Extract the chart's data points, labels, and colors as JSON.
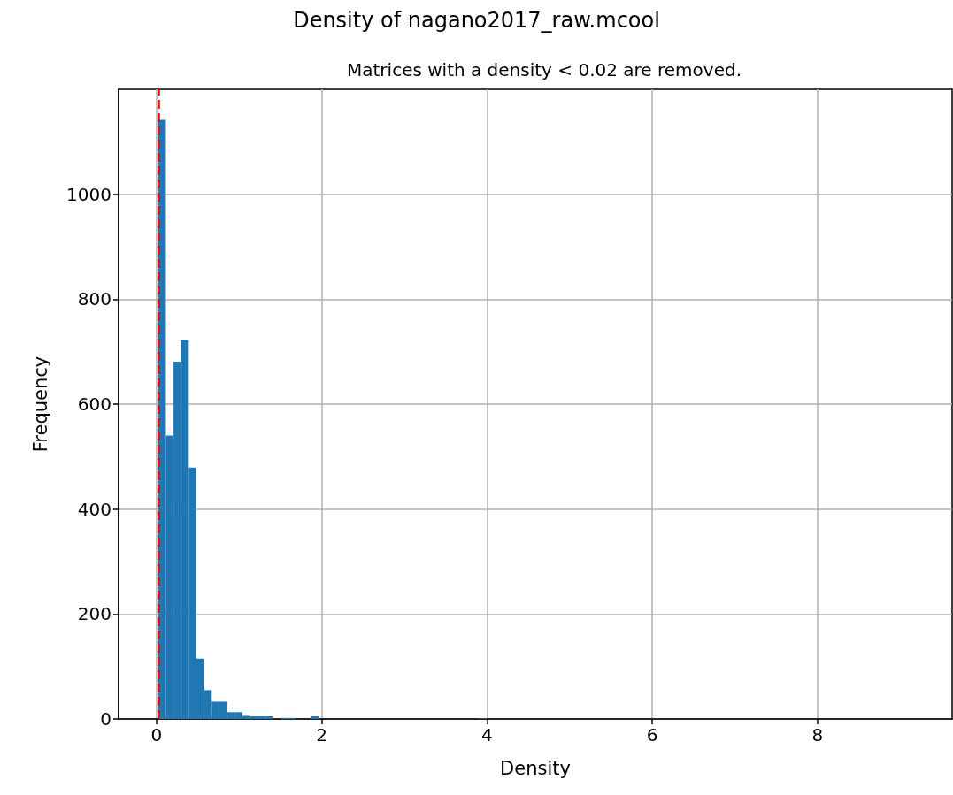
{
  "chart_data": {
    "type": "histogram",
    "title": "Density of nagano2017_raw.mcool",
    "subtitle": "Matrices with a density < 0.02 are removed.",
    "xlabel": "Density",
    "ylabel": "Frequency",
    "bins": [
      0.02,
      0.1125,
      0.205,
      0.2975,
      0.39,
      0.4825,
      0.575,
      0.6675,
      0.76,
      0.8525,
      0.945,
      1.0375,
      1.13,
      1.2225,
      1.315,
      1.4075,
      1.5,
      1.5925,
      1.685,
      1.7775,
      1.87,
      1.9625,
      2.055,
      2.1475,
      2.24,
      2.3325,
      2.425,
      2.5175,
      2.61,
      2.7025,
      2.795,
      2.8875,
      2.98,
      3.0725,
      3.165,
      3.2575,
      3.35,
      3.4425,
      3.535,
      3.6275,
      3.72,
      3.8125,
      3.905,
      3.9975,
      4.09
    ],
    "values": [
      1142,
      540,
      681,
      722,
      479,
      115,
      55,
      33,
      33,
      13,
      13,
      6,
      5,
      5,
      5,
      0,
      2,
      2,
      0,
      0,
      5,
      0,
      0,
      0,
      0,
      0,
      0,
      0,
      0,
      0,
      0,
      0,
      0,
      0,
      0,
      0,
      0,
      0,
      0,
      0,
      0,
      0,
      1,
      0
    ],
    "color": "#1f77b4",
    "xlim": [
      -0.46,
      9.63
    ],
    "xticks": [
      0,
      2,
      4,
      6,
      8
    ],
    "ylim": [
      0,
      1200
    ],
    "yticks": [
      0,
      200,
      400,
      600,
      800,
      1000
    ],
    "grid": true,
    "ref_lines": [
      {
        "axis": "x",
        "value": 0.02,
        "color": "#ff0000",
        "line_style": "dashed"
      }
    ]
  }
}
